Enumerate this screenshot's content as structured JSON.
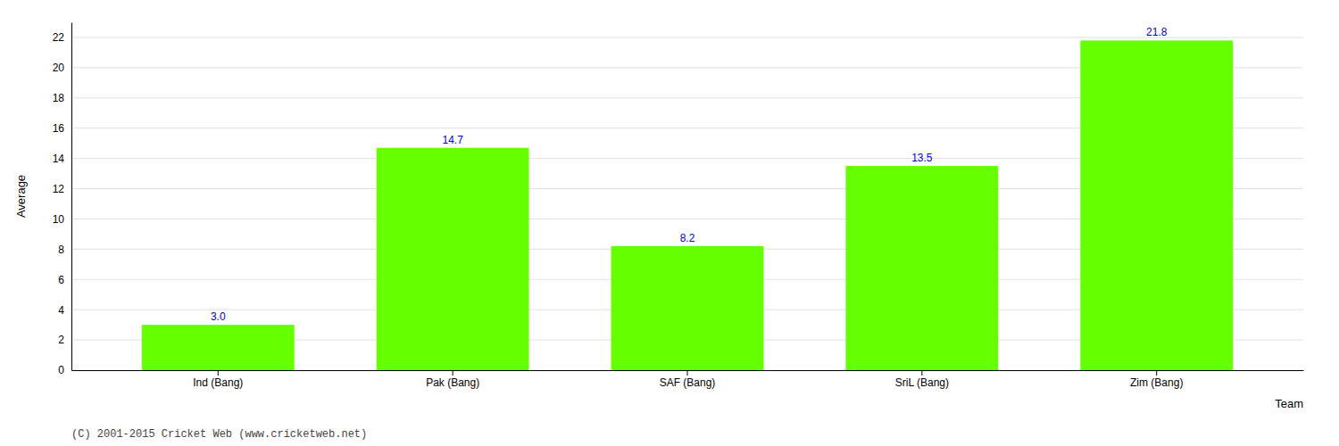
{
  "chart_data": {
    "type": "bar",
    "categories": [
      "Ind (Bang)",
      "Pak (Bang)",
      "SAF (Bang)",
      "SriL (Bang)",
      "Zim (Bang)"
    ],
    "values": [
      3.0,
      14.7,
      8.2,
      13.5,
      21.8
    ],
    "value_labels": [
      "3.0",
      "14.7",
      "8.2",
      "13.5",
      "21.8"
    ],
    "color": "#66ff00",
    "xlabel": "Team",
    "ylabel": "Average",
    "ylim": [
      0,
      23
    ],
    "yticks": [
      0,
      2,
      4,
      6,
      8,
      10,
      12,
      14,
      16,
      18,
      20,
      22
    ],
    "grid": true,
    "data_labels": true,
    "annotations": [
      "(C) 2001-2015 Cricket Web (www.cricketweb.net)"
    ]
  }
}
